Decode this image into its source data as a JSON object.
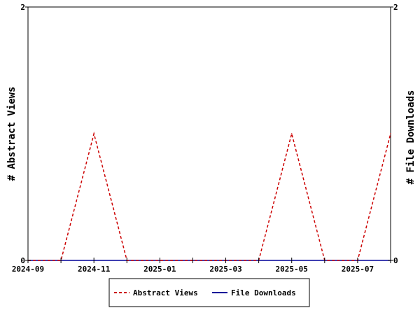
{
  "chart_data": {
    "type": "line",
    "x": [
      "2024-09",
      "2024-10",
      "2024-11",
      "2024-12",
      "2025-01",
      "2025-02",
      "2025-03",
      "2025-04",
      "2025-05",
      "2025-06",
      "2025-07",
      "2025-08"
    ],
    "series": [
      {
        "name": "Abstract Views",
        "axis": "left",
        "color": "#cc0000",
        "dash": "dashed",
        "values": [
          0,
          0,
          1,
          0,
          0,
          0,
          0,
          0,
          1,
          0,
          0,
          1
        ]
      },
      {
        "name": "File Downloads",
        "axis": "right",
        "color": "#000099",
        "dash": "solid",
        "values": [
          0,
          0,
          0,
          0,
          0,
          0,
          0,
          0,
          0,
          0,
          0,
          0
        ]
      }
    ],
    "x_tick_labels": [
      "2024-09",
      "2024-11",
      "2025-01",
      "2025-03",
      "2025-05",
      "2025-07"
    ],
    "ylabel_left": "# Abstract Views",
    "ylabel_right": "# File Downloads",
    "ylim_left": [
      0,
      2
    ],
    "ylim_right": [
      0,
      2
    ],
    "y_tick_labels_left": [
      "0",
      "2"
    ],
    "y_tick_labels_right": [
      "0",
      "2"
    ],
    "grid": false,
    "legend_placement": "bottom-center"
  }
}
